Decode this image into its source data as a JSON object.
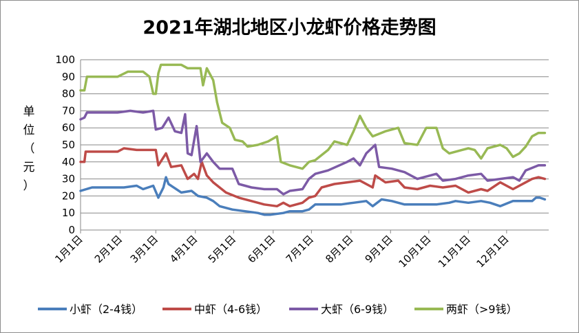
{
  "chart_data": {
    "type": "line",
    "title": "2021年湖北地区小龙虾价格走势图",
    "xlabel": "",
    "ylabel": "单位（元）",
    "ylim": [
      0,
      100
    ],
    "yticks": [
      "0",
      "10",
      "20",
      "30",
      "40",
      "50",
      "60",
      "70",
      "80",
      "90",
      "100"
    ],
    "xticks": [
      "1月1日",
      "2月1日",
      "3月1日",
      "4月1日",
      "5月1日",
      "6月1日",
      "7月1日",
      "8月1日",
      "9月1日",
      "10月1日",
      "11月1日",
      "12月1日"
    ],
    "grid": true,
    "legend_position": "bottom",
    "x_unit": "day of year (1 = 1月1日)",
    "series": [
      {
        "name": "小虾（2-4钱）",
        "color": "#4a7ebb",
        "points": [
          [
            1,
            23
          ],
          [
            10,
            25
          ],
          [
            35,
            25
          ],
          [
            45,
            26
          ],
          [
            50,
            24
          ],
          [
            58,
            26
          ],
          [
            62,
            19
          ],
          [
            66,
            25
          ],
          [
            68,
            31
          ],
          [
            70,
            27
          ],
          [
            80,
            22
          ],
          [
            88,
            23
          ],
          [
            93,
            20
          ],
          [
            100,
            19
          ],
          [
            105,
            17
          ],
          [
            110,
            14
          ],
          [
            120,
            12
          ],
          [
            130,
            11
          ],
          [
            140,
            10
          ],
          [
            145,
            9
          ],
          [
            150,
            9
          ],
          [
            160,
            10
          ],
          [
            165,
            11
          ],
          [
            175,
            11
          ],
          [
            180,
            12
          ],
          [
            185,
            15
          ],
          [
            190,
            15
          ],
          [
            205,
            15
          ],
          [
            215,
            16
          ],
          [
            225,
            17
          ],
          [
            230,
            14
          ],
          [
            237,
            18
          ],
          [
            245,
            17
          ],
          [
            255,
            15
          ],
          [
            265,
            15
          ],
          [
            280,
            15
          ],
          [
            290,
            16
          ],
          [
            295,
            17
          ],
          [
            305,
            16
          ],
          [
            315,
            17
          ],
          [
            322,
            16
          ],
          [
            330,
            14
          ],
          [
            340,
            17
          ],
          [
            355,
            17
          ],
          [
            358,
            19
          ],
          [
            361,
            19
          ],
          [
            365,
            18
          ]
        ]
      },
      {
        "name": "中虾（4-6钱）",
        "color": "#be4b48",
        "points": [
          [
            1,
            40
          ],
          [
            4,
            40
          ],
          [
            5,
            46
          ],
          [
            30,
            46
          ],
          [
            35,
            48
          ],
          [
            45,
            47
          ],
          [
            60,
            47
          ],
          [
            62,
            38
          ],
          [
            68,
            45
          ],
          [
            72,
            37
          ],
          [
            80,
            38
          ],
          [
            85,
            30
          ],
          [
            90,
            33
          ],
          [
            93,
            30
          ],
          [
            96,
            40
          ],
          [
            100,
            32
          ],
          [
            105,
            28
          ],
          [
            115,
            22
          ],
          [
            125,
            19
          ],
          [
            135,
            17
          ],
          [
            145,
            15
          ],
          [
            155,
            14
          ],
          [
            160,
            16
          ],
          [
            165,
            14
          ],
          [
            175,
            16
          ],
          [
            180,
            19
          ],
          [
            185,
            20
          ],
          [
            190,
            25
          ],
          [
            200,
            27
          ],
          [
            210,
            28
          ],
          [
            220,
            29
          ],
          [
            230,
            25
          ],
          [
            232,
            32
          ],
          [
            240,
            28
          ],
          [
            250,
            29
          ],
          [
            255,
            25
          ],
          [
            265,
            24
          ],
          [
            275,
            26
          ],
          [
            285,
            25
          ],
          [
            295,
            26
          ],
          [
            305,
            22
          ],
          [
            315,
            24
          ],
          [
            320,
            23
          ],
          [
            330,
            28
          ],
          [
            340,
            24
          ],
          [
            350,
            28
          ],
          [
            355,
            30
          ],
          [
            360,
            31
          ],
          [
            365,
            30
          ]
        ]
      },
      {
        "name": "大虾（6-9钱）",
        "color": "#7c5aa6",
        "points": [
          [
            1,
            65
          ],
          [
            4,
            66
          ],
          [
            6,
            69
          ],
          [
            30,
            69
          ],
          [
            40,
            70
          ],
          [
            50,
            69
          ],
          [
            58,
            70
          ],
          [
            60,
            59
          ],
          [
            65,
            60
          ],
          [
            70,
            66
          ],
          [
            75,
            58
          ],
          [
            80,
            57
          ],
          [
            83,
            68
          ],
          [
            85,
            45
          ],
          [
            88,
            44
          ],
          [
            92,
            61
          ],
          [
            95,
            40
          ],
          [
            100,
            45
          ],
          [
            105,
            40
          ],
          [
            110,
            36
          ],
          [
            120,
            36
          ],
          [
            125,
            27
          ],
          [
            135,
            25
          ],
          [
            145,
            24
          ],
          [
            155,
            24
          ],
          [
            160,
            21
          ],
          [
            165,
            23
          ],
          [
            175,
            24
          ],
          [
            180,
            30
          ],
          [
            185,
            33
          ],
          [
            195,
            35
          ],
          [
            210,
            40
          ],
          [
            215,
            42
          ],
          [
            220,
            38
          ],
          [
            225,
            45
          ],
          [
            232,
            50
          ],
          [
            235,
            37
          ],
          [
            245,
            36
          ],
          [
            255,
            34
          ],
          [
            265,
            30
          ],
          [
            280,
            33
          ],
          [
            285,
            29
          ],
          [
            295,
            30
          ],
          [
            305,
            32
          ],
          [
            315,
            33
          ],
          [
            320,
            29
          ],
          [
            330,
            30
          ],
          [
            340,
            31
          ],
          [
            345,
            29
          ],
          [
            350,
            35
          ],
          [
            360,
            38
          ],
          [
            365,
            38
          ]
        ]
      },
      {
        "name": "两虾（>9钱）",
        "color": "#98b954",
        "points": [
          [
            1,
            82
          ],
          [
            4,
            82
          ],
          [
            6,
            90
          ],
          [
            30,
            90
          ],
          [
            38,
            93
          ],
          [
            50,
            93
          ],
          [
            55,
            90
          ],
          [
            58,
            80
          ],
          [
            60,
            80
          ],
          [
            62,
            92
          ],
          [
            64,
            97
          ],
          [
            80,
            97
          ],
          [
            85,
            95
          ],
          [
            95,
            95
          ],
          [
            97,
            85
          ],
          [
            100,
            95
          ],
          [
            105,
            88
          ],
          [
            108,
            75
          ],
          [
            112,
            63
          ],
          [
            118,
            60
          ],
          [
            122,
            53
          ],
          [
            128,
            52
          ],
          [
            132,
            49
          ],
          [
            140,
            50
          ],
          [
            148,
            52
          ],
          [
            155,
            55
          ],
          [
            158,
            40
          ],
          [
            165,
            38
          ],
          [
            175,
            36
          ],
          [
            180,
            40
          ],
          [
            185,
            41
          ],
          [
            195,
            47
          ],
          [
            200,
            52
          ],
          [
            210,
            50
          ],
          [
            215,
            58
          ],
          [
            220,
            67
          ],
          [
            225,
            60
          ],
          [
            230,
            55
          ],
          [
            240,
            58
          ],
          [
            250,
            60
          ],
          [
            255,
            51
          ],
          [
            265,
            50
          ],
          [
            272,
            60
          ],
          [
            280,
            60
          ],
          [
            285,
            48
          ],
          [
            290,
            45
          ],
          [
            300,
            47
          ],
          [
            305,
            48
          ],
          [
            310,
            47
          ],
          [
            315,
            42
          ],
          [
            320,
            48
          ],
          [
            330,
            50
          ],
          [
            335,
            48
          ],
          [
            340,
            43
          ],
          [
            345,
            45
          ],
          [
            350,
            49
          ],
          [
            355,
            55
          ],
          [
            360,
            57
          ],
          [
            365,
            57
          ]
        ]
      }
    ]
  }
}
